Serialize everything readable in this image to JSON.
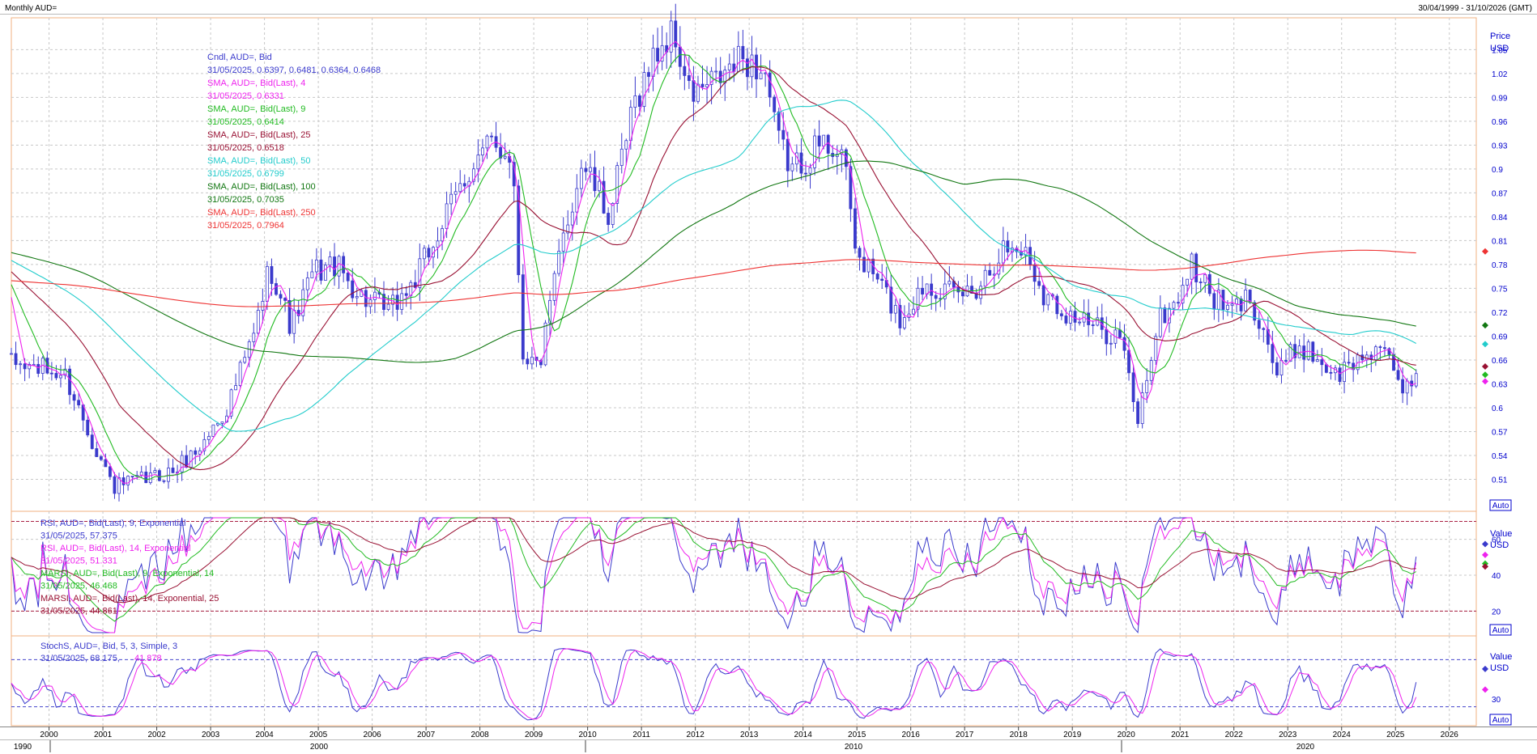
{
  "header": {
    "title": "Monthly AUD=",
    "range": "30/04/1999 - 31/10/2026 (GMT)"
  },
  "price_axis": {
    "label1": "Price",
    "label2": "USD",
    "auto": "Auto"
  },
  "rsi_axis": {
    "label1": "Value",
    "label2": "USD",
    "auto": "Auto"
  },
  "stoch_axis": {
    "label1": "Value",
    "label2": "USD",
    "auto": "Auto"
  },
  "price_legend": [
    {
      "text": "Cndl, AUD=, Bid",
      "color": "#3a3acc"
    },
    {
      "text": "31/05/2025, 0.6397, 0.6481, 0.6364, 0.6468",
      "color": "#3a3acc"
    },
    {
      "text": "SMA, AUD=, Bid(Last), 4",
      "color": "#ee22ee"
    },
    {
      "text": "31/05/2025, 0.6331",
      "color": "#ee22ee"
    },
    {
      "text": "SMA, AUD=, Bid(Last), 9",
      "color": "#22bb22"
    },
    {
      "text": "31/05/2025, 0.6414",
      "color": "#22bb22"
    },
    {
      "text": "SMA, AUD=, Bid(Last), 25",
      "color": "#991133"
    },
    {
      "text": "31/05/2025, 0.6518",
      "color": "#991133"
    },
    {
      "text": "SMA, AUD=, Bid(Last), 50",
      "color": "#22cccc"
    },
    {
      "text": "31/05/2025, 0.6799",
      "color": "#22cccc"
    },
    {
      "text": "SMA, AUD=, Bid(Last), 100",
      "color": "#117711"
    },
    {
      "text": "31/05/2025, 0.7035",
      "color": "#117711"
    },
    {
      "text": "SMA, AUD=, Bid(Last), 250",
      "color": "#ee3333"
    },
    {
      "text": "31/05/2025, 0.7964",
      "color": "#ee3333"
    }
  ],
  "rsi_legend": [
    {
      "text": "RSI, AUD=, Bid(Last), 9, Exponential",
      "color": "#3a3acc"
    },
    {
      "text": "31/05/2025, 57.375",
      "color": "#3a3acc"
    },
    {
      "text": "RSI, AUD=, Bid(Last), 14, Exponential",
      "color": "#ee22ee"
    },
    {
      "text": "31/05/2025, 51.331",
      "color": "#ee22ee"
    },
    {
      "text": "MARSI, AUD=, Bid(Last), 9, Exponential, 14",
      "color": "#22bb22"
    },
    {
      "text": "31/05/2025, 46.468",
      "color": "#22bb22"
    },
    {
      "text": "MARSI, AUD=, Bid(Last), 14, Exponential, 25",
      "color": "#991133"
    },
    {
      "text": "31/05/2025, 44.861",
      "color": "#991133"
    }
  ],
  "stoch_legend": {
    "name": "StochS, AUD=, Bid, 5, 3, Simple, 3",
    "date_val": "31/05/2025, 68.175,",
    "val2": "41.878",
    "color1": "#3a3acc",
    "color2": "#ee22ee"
  },
  "time_axis": {
    "years": [
      "2000",
      "2001",
      "2002",
      "2003",
      "2004",
      "2005",
      "2006",
      "2007",
      "2008",
      "2009",
      "2010",
      "2011",
      "2012",
      "2013",
      "2014",
      "2015",
      "2016",
      "2017",
      "2018",
      "2019",
      "2020",
      "2021",
      "2022",
      "2023",
      "2024",
      "2025",
      "2026"
    ],
    "decades": [
      "1990",
      "2000",
      "2010",
      "2020"
    ]
  },
  "chart_data": [
    {
      "type": "candlestick",
      "title": "Monthly AUD=",
      "ylabel": "Price USD",
      "ylim": [
        0.48,
        1.09
      ],
      "ticks": [
        "0.51",
        "0.54",
        "0.57",
        "0.6",
        "0.63",
        "0.66",
        "0.69",
        "0.72",
        "0.75",
        "0.78",
        "0.81",
        "0.84",
        "0.87",
        "0.9",
        "0.93",
        "0.96",
        "0.99",
        "1.02",
        "1.05"
      ],
      "price_path": [
        [
          1999.3,
          0.655
        ],
        [
          1999.8,
          0.65
        ],
        [
          2000.3,
          0.64
        ],
        [
          2000.8,
          0.56
        ],
        [
          2001.2,
          0.5
        ],
        [
          2001.8,
          0.51
        ],
        [
          2002.3,
          0.52
        ],
        [
          2002.8,
          0.55
        ],
        [
          2003.3,
          0.6
        ],
        [
          2003.8,
          0.69
        ],
        [
          2004.1,
          0.78
        ],
        [
          2004.5,
          0.7
        ],
        [
          2004.9,
          0.77
        ],
        [
          2005.3,
          0.78
        ],
        [
          2005.8,
          0.74
        ],
        [
          2006.3,
          0.72
        ],
        [
          2006.8,
          0.76
        ],
        [
          2007.3,
          0.83
        ],
        [
          2007.8,
          0.9
        ],
        [
          2008.2,
          0.93
        ],
        [
          2008.6,
          0.92
        ],
        [
          2008.8,
          0.67
        ],
        [
          2009.1,
          0.65
        ],
        [
          2009.5,
          0.8
        ],
        [
          2009.9,
          0.91
        ],
        [
          2010.4,
          0.84
        ],
        [
          2010.9,
          0.99
        ],
        [
          2011.3,
          1.05
        ],
        [
          2011.6,
          1.07
        ],
        [
          2011.9,
          0.99
        ],
        [
          2012.4,
          1.01
        ],
        [
          2012.9,
          1.04
        ],
        [
          2013.3,
          1.02
        ],
        [
          2013.5,
          0.94
        ],
        [
          2013.8,
          0.9
        ],
        [
          2014.3,
          0.93
        ],
        [
          2014.7,
          0.93
        ],
        [
          2015.0,
          0.79
        ],
        [
          2015.4,
          0.76
        ],
        [
          2015.8,
          0.71
        ],
        [
          2016.3,
          0.76
        ],
        [
          2016.8,
          0.74
        ],
        [
          2017.2,
          0.75
        ],
        [
          2017.7,
          0.8
        ],
        [
          2018.1,
          0.8
        ],
        [
          2018.5,
          0.74
        ],
        [
          2018.9,
          0.72
        ],
        [
          2019.4,
          0.7
        ],
        [
          2019.9,
          0.69
        ],
        [
          2020.2,
          0.58
        ],
        [
          2020.6,
          0.71
        ],
        [
          2020.9,
          0.73
        ],
        [
          2021.2,
          0.78
        ],
        [
          2021.6,
          0.74
        ],
        [
          2021.9,
          0.72
        ],
        [
          2022.3,
          0.74
        ],
        [
          2022.6,
          0.69
        ],
        [
          2022.8,
          0.64
        ],
        [
          2023.2,
          0.68
        ],
        [
          2023.6,
          0.66
        ],
        [
          2023.9,
          0.64
        ],
        [
          2024.3,
          0.66
        ],
        [
          2024.7,
          0.68
        ],
        [
          2025.1,
          0.62
        ],
        [
          2025.4,
          0.645
        ]
      ],
      "series": [
        {
          "name": "SMA 4",
          "color": "#ee22ee",
          "last": 0.6331
        },
        {
          "name": "SMA 9",
          "color": "#22bb22",
          "last": 0.6414
        },
        {
          "name": "SMA 25",
          "color": "#991133",
          "last": 0.6518
        },
        {
          "name": "SMA 50",
          "color": "#22cccc",
          "last": 0.6799
        },
        {
          "name": "SMA 100",
          "color": "#117711",
          "last": 0.7035
        },
        {
          "name": "SMA 250",
          "color": "#ee3333",
          "last": 0.7964
        }
      ]
    },
    {
      "type": "line",
      "title": "RSI",
      "ylabel": "Value USD",
      "ylim": [
        8,
        72
      ],
      "ticks": [
        "20",
        "40",
        "60"
      ],
      "levels": [
        20,
        70
      ],
      "series": [
        {
          "name": "RSI 9",
          "color": "#3a3acc",
          "last": 57.375
        },
        {
          "name": "RSI 14",
          "color": "#ee22ee",
          "last": 51.331
        },
        {
          "name": "MARSI 9",
          "color": "#22bb22",
          "last": 46.468
        },
        {
          "name": "MARSI 14",
          "color": "#991133",
          "last": 44.861
        }
      ]
    },
    {
      "type": "line",
      "title": "StochS",
      "ylabel": "Value USD",
      "ylim": [
        0,
        100
      ],
      "ticks": [
        "30"
      ],
      "levels": [
        20,
        80
      ],
      "series": [
        {
          "name": "StochS %K",
          "color": "#3a3acc",
          "last": 68.175
        },
        {
          "name": "StochS %D",
          "color": "#ee22ee",
          "last": 41.878
        }
      ]
    }
  ],
  "colors": {
    "candle": "#3a3acc",
    "grid": "#c8c8c8",
    "frame": "#f0b080",
    "axis_text": "#0000cc",
    "level": "#aa2244",
    "level_stoch": "#4444cc"
  }
}
